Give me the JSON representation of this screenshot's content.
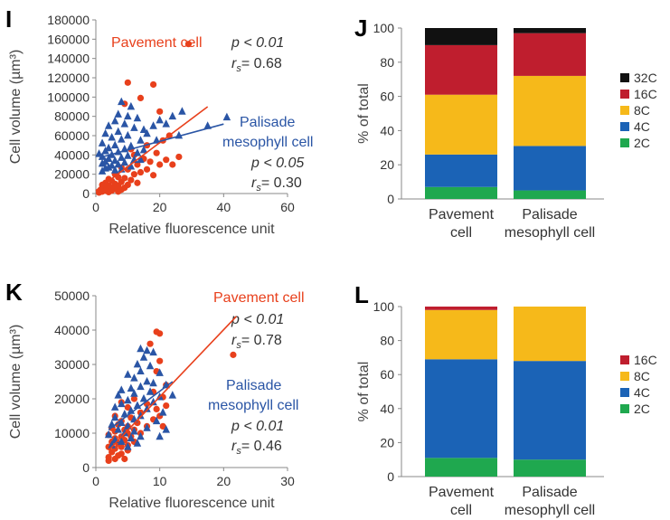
{
  "panels": {
    "I": "I",
    "J": "J",
    "K": "K",
    "L": "L"
  },
  "colors": {
    "pavement": "#e8401c",
    "palisade": "#2a55a5",
    "c32": "#111111",
    "c16": "#bf1e2e",
    "c8": "#f6b91a",
    "c4": "#1b63b6",
    "c2": "#1fa84f"
  },
  "chart_data": [
    {
      "id": "I",
      "type": "scatter",
      "title": "",
      "xlabel": "Relative fluorescence unit",
      "ylabel": "Cell volume (µm³)",
      "xlim": [
        0,
        60
      ],
      "ylim": [
        0,
        180000
      ],
      "xticks": [
        0,
        20,
        40,
        60
      ],
      "yticks": [
        0,
        20000,
        40000,
        60000,
        80000,
        100000,
        120000,
        140000,
        160000,
        180000
      ],
      "series": [
        {
          "name": "Pavement cell",
          "marker": "circle",
          "color": "#e8401c",
          "stats": {
            "p": "p < 0.01",
            "r": "= 0.68"
          },
          "fit": [
            [
              0,
              3000
            ],
            [
              35,
              90000
            ]
          ],
          "points": [
            [
              29,
              155000
            ],
            [
              10,
              115000
            ],
            [
              18,
              113000
            ],
            [
              14,
              99000
            ],
            [
              9,
              93000
            ],
            [
              20,
              85000
            ],
            [
              23,
              60000
            ],
            [
              21,
              55000
            ],
            [
              16,
              50000
            ],
            [
              11,
              46000
            ],
            [
              19,
              42000
            ],
            [
              12,
              40000
            ],
            [
              15,
              36000
            ],
            [
              17,
              33000
            ],
            [
              13,
              30000
            ],
            [
              8,
              27000
            ],
            [
              10,
              25000
            ],
            [
              14,
              22000
            ],
            [
              6,
              20000
            ],
            [
              12,
              20000
            ],
            [
              18,
              19000
            ],
            [
              7,
              17000
            ],
            [
              9,
              16000
            ],
            [
              4,
              15000
            ],
            [
              11,
              14000
            ],
            [
              5,
              13000
            ],
            [
              8,
              12000
            ],
            [
              3,
              11000
            ],
            [
              13,
              11000
            ],
            [
              6,
              10000
            ],
            [
              2,
              9000
            ],
            [
              10,
              9000
            ],
            [
              4,
              8000
            ],
            [
              7,
              8000
            ],
            [
              3,
              7000
            ],
            [
              5,
              6000
            ],
            [
              9,
              6000
            ],
            [
              2,
              5000
            ],
            [
              6,
              5000
            ],
            [
              1.5,
              4000
            ],
            [
              4,
              4000
            ],
            [
              8,
              4000
            ],
            [
              3,
              3000
            ],
            [
              5,
              3000
            ],
            [
              2,
              2000
            ],
            [
              7,
              2000
            ],
            [
              1,
              1000
            ],
            [
              4,
              1500
            ],
            [
              16,
              25000
            ],
            [
              20,
              30000
            ],
            [
              22,
              35000
            ],
            [
              24,
              30000
            ],
            [
              26,
              38000
            ]
          ]
        },
        {
          "name": "Palisade mesophyll cell",
          "marker": "triangle",
          "color": "#2a55a5",
          "stats": {
            "p": "p < 0.05",
            "r": "= 0.30"
          },
          "fit": [
            [
              2,
              38000
            ],
            [
              40,
              72000
            ]
          ],
          "points": [
            [
              8,
              95000
            ],
            [
              11,
              90000
            ],
            [
              7,
              82000
            ],
            [
              10,
              80000
            ],
            [
              13,
              78000
            ],
            [
              6,
              75000
            ],
            [
              9,
              72000
            ],
            [
              4,
              70000
            ],
            [
              12,
              68000
            ],
            [
              15,
              66000
            ],
            [
              7,
              64000
            ],
            [
              3,
              62000
            ],
            [
              10,
              60000
            ],
            [
              5,
              58000
            ],
            [
              8,
              56000
            ],
            [
              14,
              55000
            ],
            [
              2,
              52000
            ],
            [
              6,
              50000
            ],
            [
              11,
              49000
            ],
            [
              4,
              47000
            ],
            [
              9,
              46000
            ],
            [
              3,
              44000
            ],
            [
              7,
              43000
            ],
            [
              13,
              42000
            ],
            [
              1,
              41000
            ],
            [
              5,
              40000
            ],
            [
              10,
              39000
            ],
            [
              2,
              38000
            ],
            [
              8,
              37000
            ],
            [
              4,
              36000
            ],
            [
              12,
              35000
            ],
            [
              6,
              34000
            ],
            [
              3,
              33000
            ],
            [
              9,
              32000
            ],
            [
              2,
              31000
            ],
            [
              7,
              30000
            ],
            [
              5,
              29000
            ],
            [
              11,
              28000
            ],
            [
              4,
              27000
            ],
            [
              3,
              26000
            ],
            [
              8,
              25000
            ],
            [
              6,
              24000
            ],
            [
              2,
              23000
            ],
            [
              16,
              62000
            ],
            [
              18,
              70000
            ],
            [
              20,
              76000
            ],
            [
              22,
              72000
            ],
            [
              24,
              80000
            ],
            [
              27,
              85000
            ],
            [
              26,
              60000
            ],
            [
              35,
              70000
            ],
            [
              41,
              79000
            ],
            [
              15,
              45000
            ],
            [
              19,
              55000
            ],
            [
              14,
              35000
            ]
          ]
        }
      ]
    },
    {
      "id": "J",
      "type": "bar",
      "stacked": true,
      "ylabel": "% of total",
      "ylim": [
        0,
        100
      ],
      "yticks": [
        0,
        20,
        40,
        60,
        80,
        100
      ],
      "categories": [
        [
          "Pavement",
          "cell"
        ],
        [
          "Palisade",
          "mesophyll cell"
        ]
      ],
      "series": [
        {
          "name": "2C",
          "color": "#1fa84f",
          "values": [
            7,
            5
          ]
        },
        {
          "name": "4C",
          "color": "#1b63b6",
          "values": [
            19,
            26
          ]
        },
        {
          "name": "8C",
          "color": "#f6b91a",
          "values": [
            35,
            41
          ]
        },
        {
          "name": "16C",
          "color": "#bf1e2e",
          "values": [
            29,
            25
          ]
        },
        {
          "name": "32C",
          "color": "#111111",
          "values": [
            10,
            3
          ]
        }
      ],
      "legend": [
        "32C",
        "16C",
        "8C",
        "4C",
        "2C"
      ]
    },
    {
      "id": "K",
      "type": "scatter",
      "title": "",
      "xlabel": "Relative fluorescence unit",
      "ylabel": "Cell volume (µm³)",
      "xlim": [
        0,
        30
      ],
      "ylim": [
        0,
        50000
      ],
      "xticks": [
        0,
        10,
        20,
        30
      ],
      "yticks": [
        0,
        10000,
        20000,
        30000,
        40000,
        50000
      ],
      "series": [
        {
          "name": "Pavement cell",
          "marker": "circle",
          "color": "#e8401c",
          "stats": {
            "p": "p < 0.01",
            "r": "= 0.78"
          },
          "fit": [
            [
              2,
              5000
            ],
            [
              22,
              44000
            ]
          ],
          "points": [
            [
              9.5,
              39500
            ],
            [
              10,
              39000
            ],
            [
              8.5,
              36000
            ],
            [
              10,
              31000
            ],
            [
              9.5,
              28000
            ],
            [
              21.5,
              32800
            ],
            [
              11,
              24000
            ],
            [
              9,
              22000
            ],
            [
              6,
              20000
            ],
            [
              10.5,
              20500
            ],
            [
              4,
              19000
            ],
            [
              8,
              18500
            ],
            [
              5,
              17500
            ],
            [
              9.5,
              17000
            ],
            [
              7,
              16000
            ],
            [
              3,
              15000
            ],
            [
              5.5,
              14500
            ],
            [
              9,
              14000
            ],
            [
              4,
              13500
            ],
            [
              6.5,
              13000
            ],
            [
              3.5,
              12500
            ],
            [
              5,
              12000
            ],
            [
              8,
              12000
            ],
            [
              2.5,
              11500
            ],
            [
              4.5,
              11000
            ],
            [
              6,
              11000
            ],
            [
              3,
              10500
            ],
            [
              5,
              10000
            ],
            [
              7,
              10000
            ],
            [
              2,
              9500
            ],
            [
              4,
              9000
            ],
            [
              5.5,
              9000
            ],
            [
              3,
              8500
            ],
            [
              4.5,
              8000
            ],
            [
              2.5,
              7500
            ],
            [
              6,
              7500
            ],
            [
              3.5,
              7000
            ],
            [
              5,
              6500
            ],
            [
              2,
              6000
            ],
            [
              4,
              6000
            ],
            [
              3,
              5500
            ],
            [
              5,
              5000
            ],
            [
              2.5,
              4500
            ],
            [
              4,
              4000
            ],
            [
              3.5,
              3500
            ],
            [
              2,
              3000
            ],
            [
              3,
              2500
            ],
            [
              4.5,
              2500
            ],
            [
              2,
              2000
            ],
            [
              10,
              15000
            ],
            [
              10.5,
              12000
            ],
            [
              11,
              18000
            ]
          ]
        },
        {
          "name": "Palisade mesophyll cell",
          "marker": "triangle",
          "color": "#2a55a5",
          "stats": {
            "p": "p < 0.01",
            "r": "= 0.46"
          },
          "fit": [
            [
              2,
              11000
            ],
            [
              12,
              25000
            ]
          ],
          "points": [
            [
              7,
              34500
            ],
            [
              8,
              34000
            ],
            [
              9,
              33500
            ],
            [
              7.5,
              32000
            ],
            [
              6.5,
              30000
            ],
            [
              8.5,
              29500
            ],
            [
              7,
              28000
            ],
            [
              10,
              27500
            ],
            [
              5,
              27000
            ],
            [
              6,
              26000
            ],
            [
              8,
              25000
            ],
            [
              9,
              24500
            ],
            [
              11,
              24000
            ],
            [
              7,
              23500
            ],
            [
              5.5,
              23000
            ],
            [
              4,
              22500
            ],
            [
              8.5,
              22000
            ],
            [
              6,
              21500
            ],
            [
              3.5,
              21000
            ],
            [
              10,
              20500
            ],
            [
              7.5,
              20000
            ],
            [
              5,
              19500
            ],
            [
              9,
              19000
            ],
            [
              4,
              18500
            ],
            [
              6.5,
              18000
            ],
            [
              3,
              17500
            ],
            [
              8,
              17000
            ],
            [
              5.5,
              16500
            ],
            [
              10.5,
              16000
            ],
            [
              4.5,
              15500
            ],
            [
              7,
              15000
            ],
            [
              3,
              14500
            ],
            [
              6,
              14000
            ],
            [
              9.5,
              13500
            ],
            [
              4,
              13000
            ],
            [
              2.5,
              12500
            ],
            [
              5,
              12000
            ],
            [
              8,
              11500
            ],
            [
              3.5,
              11000
            ],
            [
              6,
              10500
            ],
            [
              4.5,
              10000
            ],
            [
              2,
              9500
            ],
            [
              7,
              9000
            ],
            [
              5.5,
              8500
            ],
            [
              3,
              8000
            ],
            [
              4,
              7500
            ],
            [
              6.5,
              7000
            ],
            [
              2.5,
              6500
            ],
            [
              5,
              6000
            ],
            [
              11,
              11000
            ],
            [
              10,
              9000
            ],
            [
              12,
              21000
            ]
          ]
        }
      ]
    },
    {
      "id": "L",
      "type": "bar",
      "stacked": true,
      "ylabel": "% of total",
      "ylim": [
        0,
        100
      ],
      "yticks": [
        0,
        20,
        40,
        60,
        80,
        100
      ],
      "categories": [
        [
          "Pavement",
          "cell"
        ],
        [
          "Palisade",
          "mesophyll cell"
        ]
      ],
      "series": [
        {
          "name": "2C",
          "color": "#1fa84f",
          "values": [
            11,
            10
          ]
        },
        {
          "name": "4C",
          "color": "#1b63b6",
          "values": [
            58,
            58
          ]
        },
        {
          "name": "8C",
          "color": "#f6b91a",
          "values": [
            29,
            32
          ]
        },
        {
          "name": "16C",
          "color": "#bf1e2e",
          "values": [
            2,
            0
          ]
        }
      ],
      "legend": [
        "16C",
        "8C",
        "4C",
        "2C"
      ]
    }
  ]
}
